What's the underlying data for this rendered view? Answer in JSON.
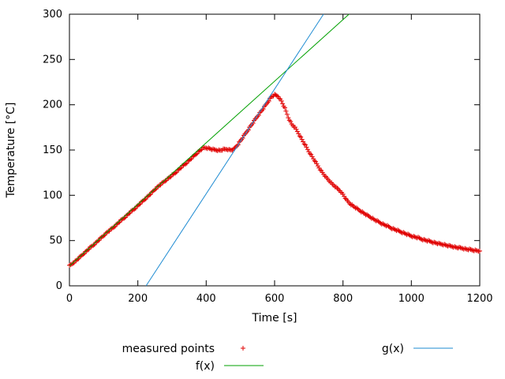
{
  "chart_data": {
    "type": "mixed",
    "title": "",
    "grid": false,
    "legend_position": "below-chart",
    "x_axis": {
      "label": "Time [s]",
      "min": 0,
      "max": 1200,
      "ticks": [
        0,
        200,
        400,
        600,
        800,
        1000,
        1200
      ]
    },
    "y_axis": {
      "label": "Temperature [°C]",
      "min": 0,
      "max": 300,
      "ticks": [
        0,
        50,
        100,
        150,
        200,
        250,
        300
      ]
    },
    "series": [
      {
        "id": "measured-points",
        "name": "measured points",
        "type": "points",
        "marker": "plus",
        "color": "#e00000",
        "points": [
          [
            0,
            22
          ],
          [
            10,
            25
          ],
          [
            20,
            28
          ],
          [
            30,
            31.5
          ],
          [
            40,
            35
          ],
          [
            50,
            38.5
          ],
          [
            60,
            42
          ],
          [
            70,
            45
          ],
          [
            80,
            48.5
          ],
          [
            90,
            52
          ],
          [
            100,
            55.5
          ],
          [
            110,
            59
          ],
          [
            120,
            62
          ],
          [
            130,
            65
          ],
          [
            140,
            68.5
          ],
          [
            150,
            72
          ],
          [
            160,
            75
          ],
          [
            170,
            78.5
          ],
          [
            180,
            82
          ],
          [
            190,
            85
          ],
          [
            200,
            88.5
          ],
          [
            210,
            92
          ],
          [
            220,
            95.5
          ],
          [
            230,
            99
          ],
          [
            240,
            102.5
          ],
          [
            250,
            106.5
          ],
          [
            260,
            110
          ],
          [
            270,
            113
          ],
          [
            280,
            116
          ],
          [
            290,
            119
          ],
          [
            300,
            122
          ],
          [
            310,
            125
          ],
          [
            320,
            128.5
          ],
          [
            330,
            132
          ],
          [
            340,
            135
          ],
          [
            350,
            138.5
          ],
          [
            360,
            142
          ],
          [
            370,
            145.5
          ],
          [
            380,
            149
          ],
          [
            390,
            152
          ],
          [
            400,
            152.5
          ],
          [
            410,
            151.5
          ],
          [
            420,
            150.5
          ],
          [
            430,
            150
          ],
          [
            440,
            149.5
          ],
          [
            450,
            150.5
          ],
          [
            460,
            151
          ],
          [
            470,
            150
          ],
          [
            480,
            150.5
          ],
          [
            490,
            155
          ],
          [
            500,
            160
          ],
          [
            510,
            165.5
          ],
          [
            520,
            171
          ],
          [
            530,
            176.5
          ],
          [
            540,
            182
          ],
          [
            550,
            187.5
          ],
          [
            560,
            192.5
          ],
          [
            570,
            197.5
          ],
          [
            580,
            203
          ],
          [
            590,
            208.5
          ],
          [
            600,
            211
          ],
          [
            610,
            209.5
          ],
          [
            620,
            204
          ],
          [
            630,
            196
          ],
          [
            640,
            186
          ],
          [
            650,
            178.5
          ],
          [
            660,
            174.5
          ],
          [
            670,
            168.5
          ],
          [
            680,
            161.5
          ],
          [
            690,
            155
          ],
          [
            700,
            148.5
          ],
          [
            710,
            142.5
          ],
          [
            720,
            136.5
          ],
          [
            730,
            130.5
          ],
          [
            740,
            125
          ],
          [
            750,
            120
          ],
          [
            760,
            116
          ],
          [
            770,
            112
          ],
          [
            780,
            108.5
          ],
          [
            790,
            105.5
          ],
          [
            800,
            101
          ],
          [
            810,
            95
          ],
          [
            820,
            91
          ],
          [
            830,
            88
          ],
          [
            840,
            85.5
          ],
          [
            850,
            83
          ],
          [
            860,
            80.5
          ],
          [
            870,
            78
          ],
          [
            880,
            76
          ],
          [
            890,
            73.5
          ],
          [
            900,
            71.5
          ],
          [
            910,
            69.5
          ],
          [
            920,
            67.5
          ],
          [
            930,
            66
          ],
          [
            940,
            64
          ],
          [
            950,
            62.5
          ],
          [
            960,
            61
          ],
          [
            970,
            59.5
          ],
          [
            980,
            58
          ],
          [
            990,
            56.5
          ],
          [
            1000,
            55
          ],
          [
            1010,
            54
          ],
          [
            1020,
            53
          ],
          [
            1030,
            51.5
          ],
          [
            1040,
            50.5
          ],
          [
            1050,
            49.5
          ],
          [
            1060,
            48.5
          ],
          [
            1070,
            47.5
          ],
          [
            1080,
            46.5
          ],
          [
            1090,
            46
          ],
          [
            1100,
            45
          ],
          [
            1110,
            44
          ],
          [
            1120,
            43.5
          ],
          [
            1130,
            42.5
          ],
          [
            1140,
            42
          ],
          [
            1150,
            41.5
          ],
          [
            1160,
            40.5
          ],
          [
            1170,
            40
          ],
          [
            1180,
            39.5
          ],
          [
            1190,
            39
          ],
          [
            1200,
            38.5
          ]
        ]
      },
      {
        "id": "f-fit",
        "name": "f(x)",
        "type": "line",
        "color": "#00a000",
        "slope": 0.34,
        "intercept": 22,
        "points": [
          [
            0,
            22
          ],
          [
            817.6,
            300
          ]
        ]
      },
      {
        "id": "g-fit",
        "name": "g(x)",
        "type": "line",
        "color": "#1e8bd2",
        "slope": 0.578,
        "x_intercept": 224,
        "points": [
          [
            224,
            0
          ],
          [
            743,
            300
          ]
        ]
      }
    ]
  }
}
